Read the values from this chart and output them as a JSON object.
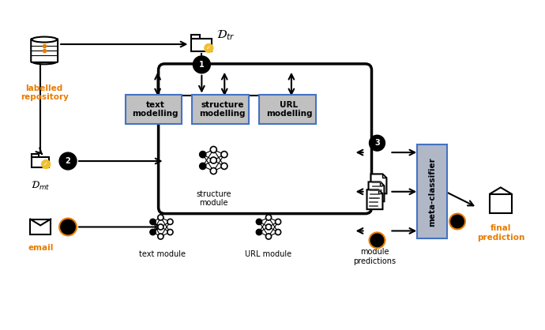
{
  "bg_color": "#ffffff",
  "text_color_orange": "#e87c00",
  "text_color_black": "#000000",
  "box_fill": "#c0c0c0",
  "box_edge": "#4472c4",
  "meta_fill": "#b0b8c8",
  "meta_edge": "#4472c4",
  "big_box_fill": "#ffffff",
  "big_box_edge": "#000000",
  "labels": {
    "labelled_repository": "labelled\nrepository",
    "D_tr": "$\\mathcal{D}_{tr}$",
    "D_mt": "$\\mathcal{D}_{mt}$",
    "email": "email",
    "text_modelling": "text\nmodelling",
    "structure_modelling": "structure\nmodelling",
    "url_modelling": "URL\nmodelling",
    "text_module": "text module",
    "structure_module": "structure\nmodule",
    "url_module": "URL module",
    "module_predictions": "module\npredictions",
    "meta_classifier": "meta-classifier",
    "final_prediction": "final\nprediction"
  }
}
